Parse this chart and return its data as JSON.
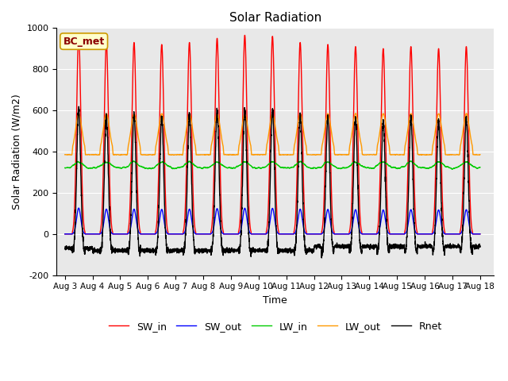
{
  "title": "Solar Radiation",
  "xlabel": "Time",
  "ylabel": "Solar Radiation (W/m2)",
  "ylim": [
    -200,
    1000
  ],
  "background_color": "#e8e8e8",
  "annotation_text": "BC_met",
  "annotation_color": "#8b0000",
  "annotation_bg": "#ffffcc",
  "annotation_edge": "#cc9900",
  "series": {
    "SW_in": {
      "color": "#ff0000",
      "lw": 1.0
    },
    "SW_out": {
      "color": "#0000ff",
      "lw": 1.0
    },
    "LW_in": {
      "color": "#00cc00",
      "lw": 1.0
    },
    "LW_out": {
      "color": "#ff9900",
      "lw": 1.0
    },
    "Rnet": {
      "color": "#000000",
      "lw": 1.0
    }
  },
  "xtick_labels": [
    "Aug 3",
    "Aug 4",
    "Aug 5",
    "Aug 6",
    "Aug 7",
    "Aug 8",
    "Aug 9",
    "Aug 10",
    "Aug 11",
    "Aug 12",
    "Aug 13",
    "Aug 14",
    "Aug 15",
    "Aug 16",
    "Aug 17",
    "Aug 18"
  ],
  "xtick_positions": [
    0,
    1,
    2,
    3,
    4,
    5,
    6,
    7,
    8,
    9,
    10,
    11,
    12,
    13,
    14,
    15
  ],
  "yticks": [
    -200,
    0,
    200,
    400,
    600,
    800,
    1000
  ],
  "n_days": 15,
  "pts_per_day": 288
}
